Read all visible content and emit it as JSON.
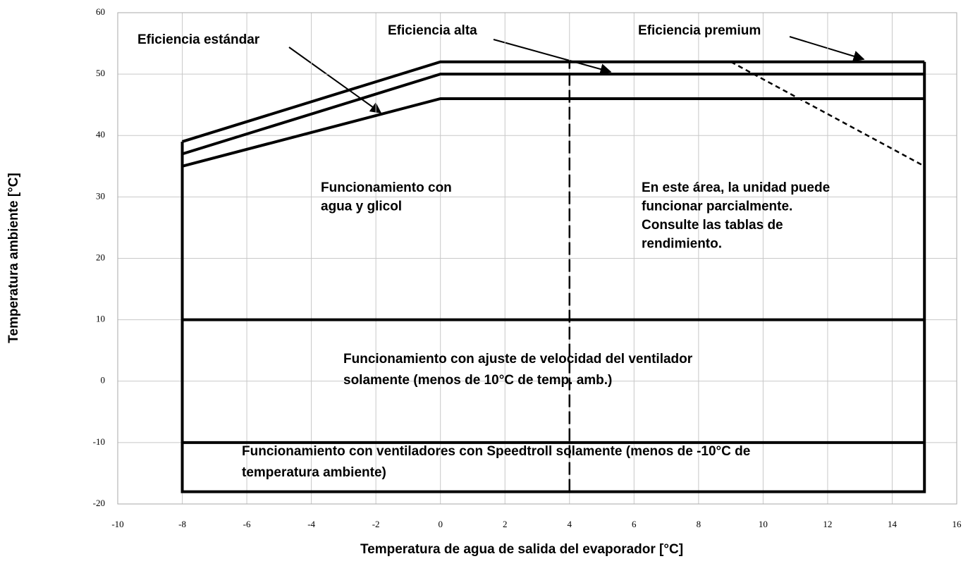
{
  "chart_data": {
    "type": "line",
    "xlabel": "Temperatura de agua de salida del evaporador [°C]",
    "ylabel": "Temperatura ambiente [°C]",
    "xlim": [
      -10,
      16
    ],
    "ylim": [
      -20,
      60
    ],
    "xticks": [
      -10,
      -8,
      -6,
      -4,
      -2,
      0,
      2,
      4,
      6,
      8,
      10,
      12,
      14,
      16
    ],
    "yticks": [
      -20,
      -10,
      0,
      10,
      20,
      30,
      40,
      50,
      60
    ],
    "grid": true,
    "series": [
      {
        "name": "Eficiencia estándar",
        "color": "#000000",
        "x": [
          -8,
          0,
          15
        ],
        "values": [
          35,
          46,
          46
        ]
      },
      {
        "name": "Eficiencia alta",
        "color": "#000000",
        "x": [
          -8,
          0,
          15
        ],
        "values": [
          37,
          50,
          50
        ]
      },
      {
        "name": "Eficiencia premium",
        "color": "#000000",
        "x": [
          -8,
          0,
          15
        ],
        "values": [
          39,
          52,
          52
        ]
      },
      {
        "color": "#000000",
        "x": [
          -8,
          -8,
          15,
          15
        ],
        "values": [
          39,
          -18,
          -18,
          52
        ]
      },
      {
        "color": "#000000",
        "x": [
          -8,
          15
        ],
        "values": [
          10,
          10
        ]
      },
      {
        "color": "#000000",
        "x": [
          -8,
          15
        ],
        "values": [
          -10,
          -10
        ]
      },
      {
        "color": "#000000",
        "x": [
          4,
          4
        ],
        "values": [
          -18,
          52
        ],
        "dash": "dashed"
      },
      {
        "color": "#000000",
        "x": [
          9,
          15
        ],
        "values": [
          52,
          35
        ],
        "dash": "dotted"
      }
    ],
    "annotations": [
      {
        "text": [
          "Funcionamiento con",
          "agua y glicol"
        ]
      },
      {
        "text": [
          "En este área, la unidad puede",
          "funcionar parcialmente.",
          "Consulte las tablas de",
          "rendimiento."
        ]
      },
      {
        "text": [
          "Funcionamiento con ajuste de velocidad del ventilador",
          "solamente (menos de 10°C de temp. amb.)"
        ]
      },
      {
        "text": [
          "Funcionamiento con ventiladores con Speedtroll solamente (menos de -10°C de",
          "temperatura ambiente)"
        ]
      }
    ]
  }
}
